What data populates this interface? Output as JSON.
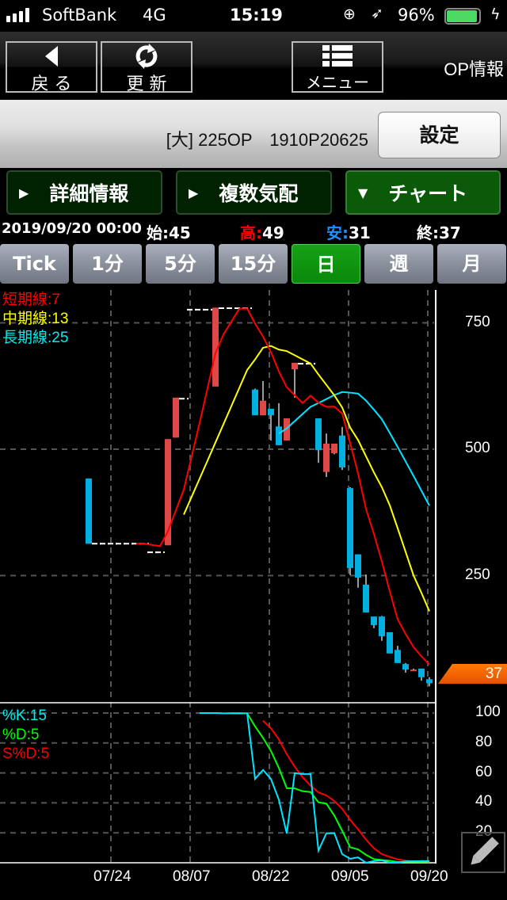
{
  "status_bar": {
    "carrier": "SoftBank",
    "network": "4G",
    "time": "15:19",
    "battery": "96%",
    "battery_level": 0.96,
    "battery_color": "#4cd964"
  },
  "toolbar": {
    "back_label": "戻 る",
    "refresh_label": "更 新",
    "menu_label": "メニュー",
    "title": "OP情報"
  },
  "instrument": {
    "name": "[大] 225OP　1910P20625",
    "settings_label": "設定"
  },
  "tabs": [
    {
      "label": "詳細情報",
      "icon": "triangle-right-icon"
    },
    {
      "label": "複数気配",
      "icon": "triangle-right-icon"
    },
    {
      "label": "チャート",
      "icon": "triangle-down-icon",
      "active": true
    }
  ],
  "quote": {
    "datetime": "2019/09/20 00:00",
    "open_label": "始:",
    "open": "45",
    "high_label": "高:",
    "high": "49",
    "low_label": "安:",
    "low": "31",
    "close_label": "終:",
    "close": "37",
    "high_color": "#ff0000",
    "low_color": "#1e90ff"
  },
  "periods": [
    {
      "label": "Tick"
    },
    {
      "label": "1分"
    },
    {
      "label": "5分"
    },
    {
      "label": "15分"
    },
    {
      "label": "日",
      "active": true
    },
    {
      "label": "週"
    },
    {
      "label": "月"
    }
  ],
  "chart_data": {
    "type": "candlestick",
    "legend": [
      {
        "label": "短期線:7",
        "color": "#ff0000",
        "period": 7
      },
      {
        "label": "中期線:13",
        "color": "#ffff00",
        "period": 13
      },
      {
        "label": "長期線:25",
        "color": "#00e5ff",
        "period": 25
      }
    ],
    "price_ticks": [
      "750",
      "500",
      "250"
    ],
    "price_values": [
      750,
      500,
      250
    ],
    "ylim": [
      0,
      817
    ],
    "x_ticks": [
      "07/24",
      "08/07",
      "08/22",
      "09/05",
      "09/20"
    ],
    "x_tick_bar_index": [
      3,
      13,
      23,
      33,
      43
    ],
    "current_price": "37",
    "up_color": "#e04848",
    "down_color": "#00b0e0",
    "ohlc": [
      [
        442,
        442,
        313,
        313
      ],
      [
        313,
        313,
        313,
        313
      ],
      [
        313,
        313,
        313,
        313
      ],
      [
        313,
        313,
        313,
        313
      ],
      [
        313,
        313,
        313,
        313
      ],
      [
        313,
        313,
        313,
        313
      ],
      [
        313,
        313,
        313,
        313
      ],
      [
        313,
        313,
        313,
        313
      ],
      [
        296,
        296,
        296,
        296
      ],
      [
        296,
        296,
        296,
        296
      ],
      [
        310,
        520,
        310,
        520
      ],
      [
        523,
        602,
        523,
        602
      ],
      [
        600,
        600,
        600,
        600
      ],
      [
        776,
        776,
        776,
        776
      ],
      [
        776,
        776,
        776,
        776
      ],
      [
        776,
        776,
        776,
        776
      ],
      [
        624,
        780,
        624,
        780
      ],
      [
        779,
        779,
        779,
        779
      ],
      [
        779,
        779,
        779,
        779
      ],
      [
        779,
        779,
        779,
        779
      ],
      [
        779,
        779,
        779,
        779
      ],
      [
        618,
        620,
        567,
        567
      ],
      [
        567,
        635,
        567,
        596
      ],
      [
        580,
        580,
        517,
        567
      ],
      [
        545,
        591,
        508,
        508
      ],
      [
        517,
        561,
        517,
        561
      ],
      [
        658,
        671,
        602,
        671
      ],
      [
        669,
        669,
        669,
        669
      ],
      [
        669,
        669,
        669,
        669
      ],
      [
        561,
        561,
        473,
        498
      ],
      [
        455,
        531,
        445,
        511
      ],
      [
        492,
        511,
        490,
        511
      ],
      [
        527,
        544,
        459,
        464
      ],
      [
        423,
        425,
        251,
        265
      ],
      [
        292,
        292,
        226,
        246
      ],
      [
        232,
        252,
        177,
        177
      ],
      [
        169,
        169,
        146,
        152
      ],
      [
        169,
        170,
        121,
        130
      ],
      [
        138,
        138,
        96,
        96
      ],
      [
        103,
        111,
        77,
        77
      ],
      [
        75,
        77,
        58,
        64
      ],
      [
        63,
        66,
        61,
        64
      ],
      [
        66,
        66,
        42,
        49
      ],
      [
        45,
        49,
        31,
        37
      ]
    ],
    "stochastics": {
      "legend": [
        {
          "label": "%K:15",
          "color": "#00e5ff"
        },
        {
          "label": "%D:5",
          "color": "#00ff00"
        },
        {
          "label": "S%D:5",
          "color": "#ff0000"
        }
      ],
      "k_period": 15,
      "d_period": 5,
      "sd_period": 5,
      "ticks": [
        "100",
        "80",
        "60",
        "40",
        "20"
      ],
      "tick_values": [
        100,
        80,
        60,
        40,
        20
      ],
      "ylim": [
        0,
        100
      ]
    }
  }
}
